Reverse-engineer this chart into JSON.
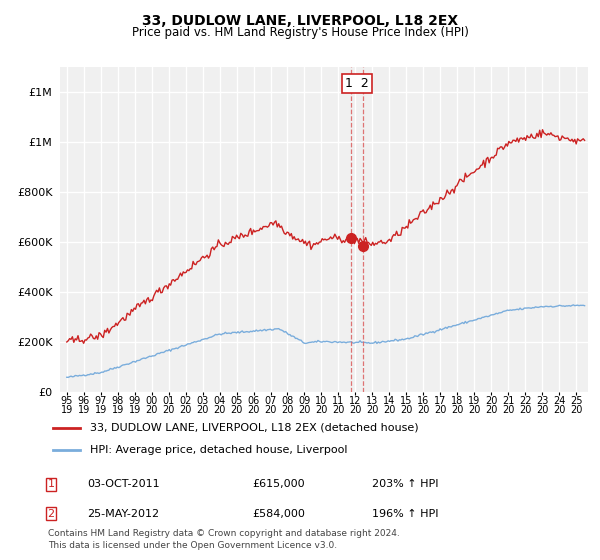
{
  "title": "33, DUDLOW LANE, LIVERPOOL, L18 2EX",
  "subtitle": "Price paid vs. HM Land Registry's House Price Index (HPI)",
  "legend_line1": "33, DUDLOW LANE, LIVERPOOL, L18 2EX (detached house)",
  "legend_line2": "HPI: Average price, detached house, Liverpool",
  "transaction1_date": "03-OCT-2011",
  "transaction1_price": 615000,
  "transaction1_hpi": "203% ↑ HPI",
  "transaction2_date": "25-MAY-2012",
  "transaction2_price": 584000,
  "transaction2_hpi": "196% ↑ HPI",
  "footer": "Contains HM Land Registry data © Crown copyright and database right 2024.\nThis data is licensed under the Open Government Licence v3.0.",
  "hpi_color": "#7aaddc",
  "price_color": "#cc2222",
  "dot_color": "#cc2222",
  "dashed_line_color": "#dd6666",
  "background_color": "#f0f0f0",
  "grid_color": "#ffffff",
  "ylim": [
    0,
    1300000
  ],
  "yticks": [
    0,
    200000,
    400000,
    600000,
    800000,
    1000000,
    1200000
  ],
  "transaction1_x": 2011.75,
  "transaction2_x": 2012.42,
  "xstart": 1995.0,
  "xend": 2025.5
}
